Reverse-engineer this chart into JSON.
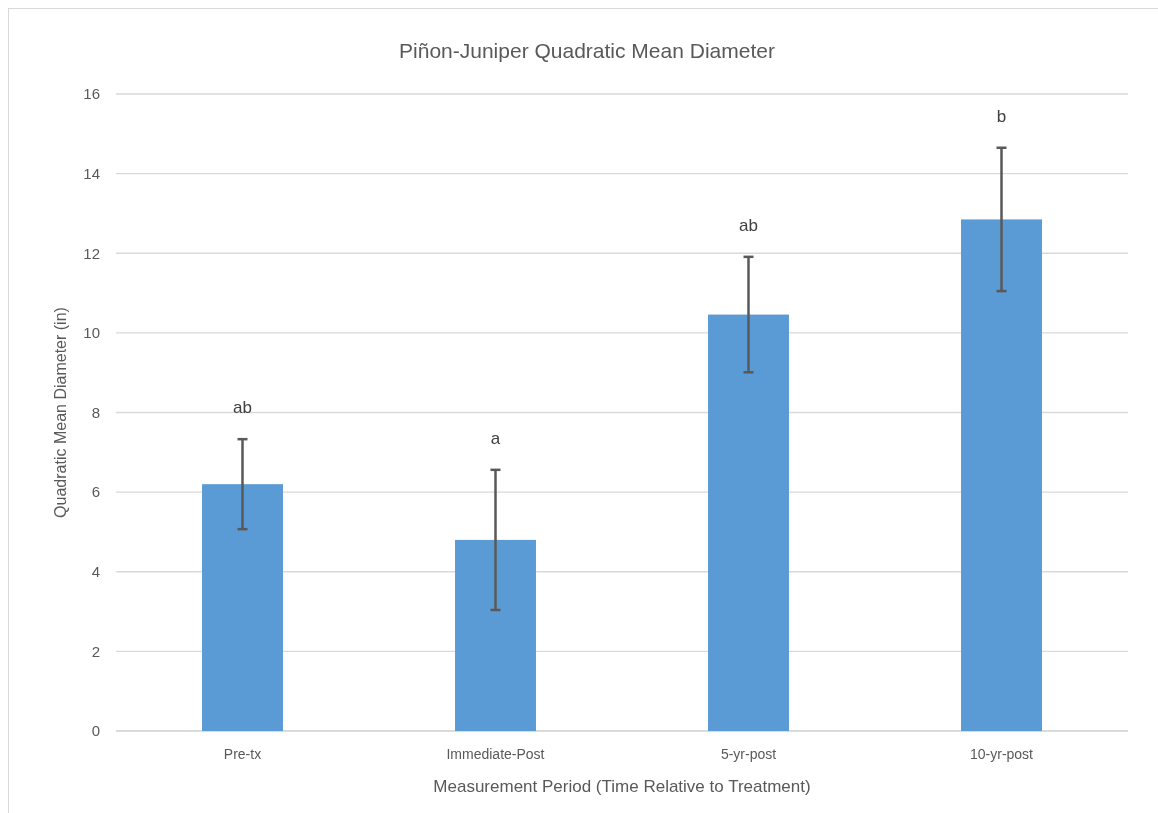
{
  "chart_data": {
    "type": "bar",
    "title": "Piñon-Juniper Quadratic Mean Diameter",
    "xlabel": "Measurement Period (Time Relative to Treatment)",
    "ylabel": "Quadratic Mean Diameter (in)",
    "categories": [
      "Pre-tx",
      "Immediate-Post",
      "5-yr-post",
      "10-yr-post"
    ],
    "values": [
      6.2,
      4.8,
      10.46,
      12.85
    ],
    "errors": [
      1.13,
      1.76,
      1.45,
      1.8
    ],
    "color": "#5b9bd5",
    "ylim": [
      0,
      16
    ],
    "yticks": [
      0,
      2,
      4,
      6,
      8,
      10,
      12,
      14,
      16
    ],
    "grid": "y",
    "annotations": [
      "ab",
      "a",
      "ab",
      "b"
    ]
  }
}
